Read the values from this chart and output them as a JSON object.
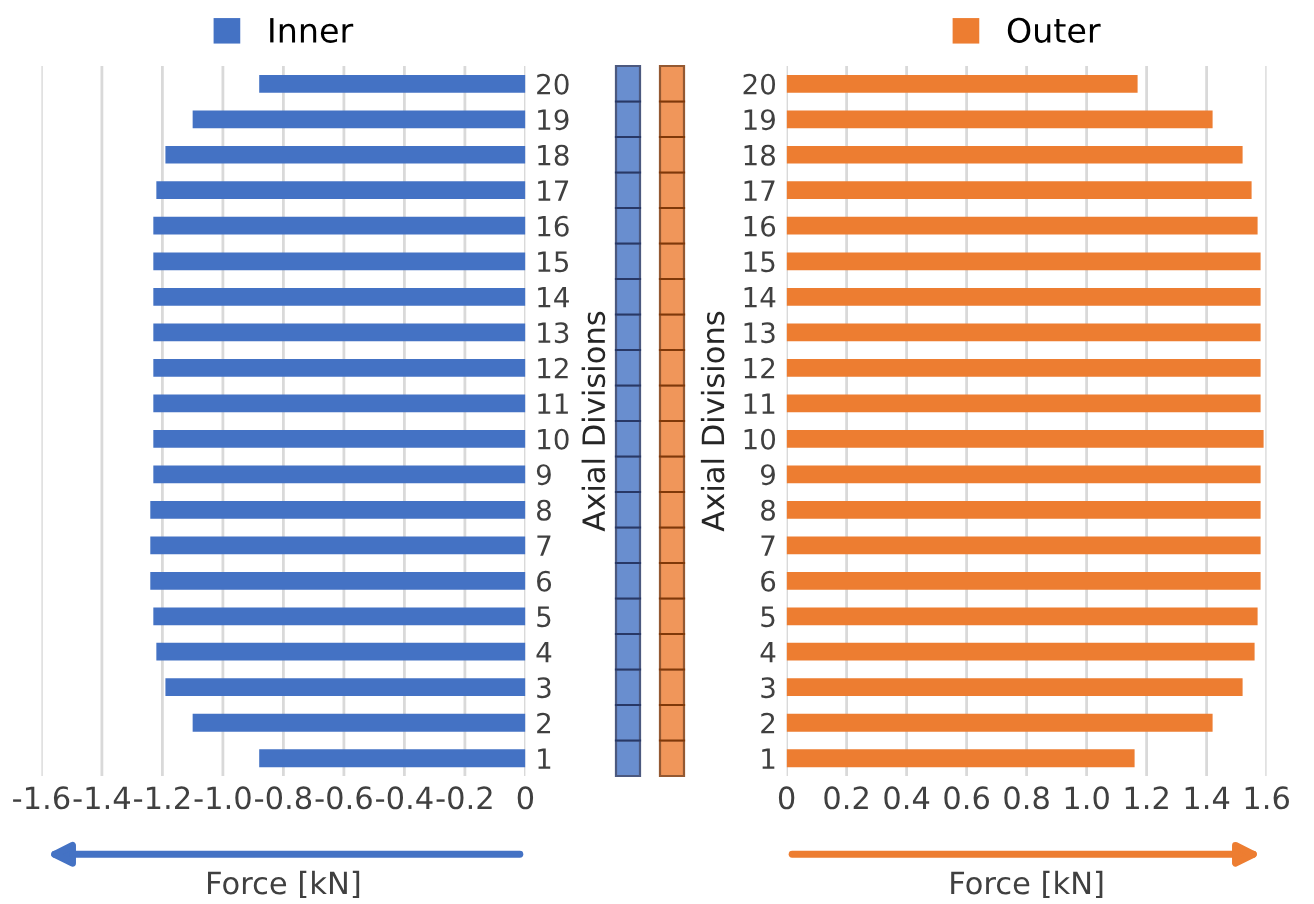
{
  "chart_data": [
    {
      "type": "bar",
      "orientation": "horizontal",
      "categories": [
        "20",
        "19",
        "18",
        "17",
        "16",
        "15",
        "14",
        "13",
        "12",
        "11",
        "10",
        "9",
        "8",
        "7",
        "6",
        "5",
        "4",
        "3",
        "2",
        "1"
      ],
      "series": [
        {
          "name": "Inner",
          "color": "#4472c4",
          "values": [
            -0.88,
            -1.1,
            -1.19,
            -1.22,
            -1.23,
            -1.23,
            -1.23,
            -1.23,
            -1.23,
            -1.23,
            -1.23,
            -1.23,
            -1.24,
            -1.24,
            -1.24,
            -1.23,
            -1.22,
            -1.19,
            -1.1,
            -0.88
          ]
        }
      ],
      "xlim": [
        -1.6,
        0
      ],
      "xticks": [
        {
          "value": -1.6,
          "label": "-1.6"
        },
        {
          "value": -1.4,
          "label": "-1.4"
        },
        {
          "value": -1.2,
          "label": "-1.2"
        },
        {
          "value": -1.0,
          "label": "-1.0"
        },
        {
          "value": -0.8,
          "label": "-0.8"
        },
        {
          "value": -0.6,
          "label": "-0.6"
        },
        {
          "value": -0.4,
          "label": "-0.4"
        },
        {
          "value": -0.2,
          "label": "-0.2"
        },
        0
      ],
      "xlabel": "Force [kN]",
      "ylabel": "Axial Divisions",
      "grid": "x",
      "legend": "top"
    },
    {
      "type": "bar",
      "orientation": "horizontal",
      "categories": [
        "20",
        "19",
        "18",
        "17",
        "16",
        "15",
        "14",
        "13",
        "12",
        "11",
        "10",
        "9",
        "8",
        "7",
        "6",
        "5",
        "4",
        "3",
        "2",
        "1"
      ],
      "series": [
        {
          "name": "Outer",
          "color": "#ed7d31",
          "values": [
            1.17,
            1.42,
            1.52,
            1.55,
            1.57,
            1.58,
            1.58,
            1.58,
            1.58,
            1.58,
            1.59,
            1.58,
            1.58,
            1.58,
            1.58,
            1.57,
            1.56,
            1.52,
            1.42,
            1.16
          ]
        }
      ],
      "xlim": [
        0,
        1.6
      ],
      "xticks": [
        0,
        0.2,
        0.4,
        0.6,
        0.8,
        {
          "value": 1.0,
          "label": "1.0"
        },
        1.2,
        1.4,
        1.6
      ],
      "xlabel": "Force [kN]",
      "ylabel": "Axial Divisions",
      "grid": "x",
      "legend": "top"
    }
  ]
}
